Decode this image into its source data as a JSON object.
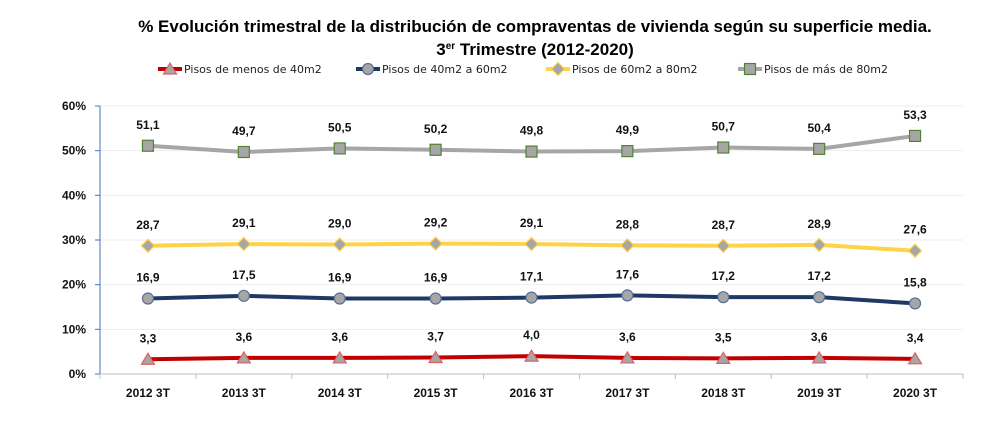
{
  "chart_data": {
    "type": "line",
    "title": "% Evolución trimestral de la distribución de compraventas de vivienda según su superficie media.",
    "subtitle_prefix": "3",
    "subtitle_sup": "er",
    "subtitle_rest": " Trimestre (2012-2020)",
    "xlabel": "",
    "ylabel": "",
    "categories": [
      "2012 3T",
      "2013 3T",
      "2014 3T",
      "2015 3T",
      "2016 3T",
      "2017 3T",
      "2018 3T",
      "2019 3T",
      "2020 3T"
    ],
    "ylim": [
      0,
      60
    ],
    "yticks": [
      0,
      10,
      20,
      30,
      40,
      50,
      60
    ],
    "ytick_labels": [
      "0%",
      "10%",
      "20%",
      "30%",
      "40%",
      "50%",
      "60%"
    ],
    "grid": true,
    "legend_position": "top",
    "series": [
      {
        "name": "Pisos de menos de 40m2",
        "color": "#C00000",
        "marker": "triangle",
        "marker_fill": "#A6A6A6",
        "marker_stroke": "#E06060",
        "values": [
          3.3,
          3.6,
          3.6,
          3.7,
          4.0,
          3.6,
          3.5,
          3.6,
          3.4
        ],
        "labels": [
          "3,3",
          "3,6",
          "3,6",
          "3,7",
          "4,0",
          "3,6",
          "3,5",
          "3,6",
          "3,4"
        ]
      },
      {
        "name": "Pisos de 40m2 a 60m2",
        "color": "#1F3864",
        "marker": "circle",
        "marker_fill": "#A6A6A6",
        "marker_stroke": "#5A6E96",
        "values": [
          16.9,
          17.5,
          16.9,
          16.9,
          17.1,
          17.6,
          17.2,
          17.2,
          15.8
        ],
        "labels": [
          "16,9",
          "17,5",
          "16,9",
          "16,9",
          "17,1",
          "17,6",
          "17,2",
          "17,2",
          "15,8"
        ]
      },
      {
        "name": "Pisos de 60m2 a 80m2",
        "color": "#FFD347",
        "marker": "diamond",
        "marker_fill": "#A6A6A6",
        "marker_stroke": "#FFD347",
        "values": [
          28.7,
          29.1,
          29.0,
          29.2,
          29.1,
          28.8,
          28.7,
          28.9,
          27.6
        ],
        "labels": [
          "28,7",
          "29,1",
          "29,0",
          "29,2",
          "29,1",
          "28,8",
          "28,7",
          "28,9",
          "27,6"
        ]
      },
      {
        "name": "Pisos de más de 80m2",
        "color": "#A6A6A6",
        "marker": "square",
        "marker_fill": "#A6A6A6",
        "marker_stroke": "#548235",
        "values": [
          51.1,
          49.7,
          50.5,
          50.2,
          49.8,
          49.9,
          50.7,
          50.4,
          53.3
        ],
        "labels": [
          "51,1",
          "49,7",
          "50,5",
          "50,2",
          "49,8",
          "49,9",
          "50,7",
          "50,4",
          "53,3"
        ]
      }
    ]
  }
}
